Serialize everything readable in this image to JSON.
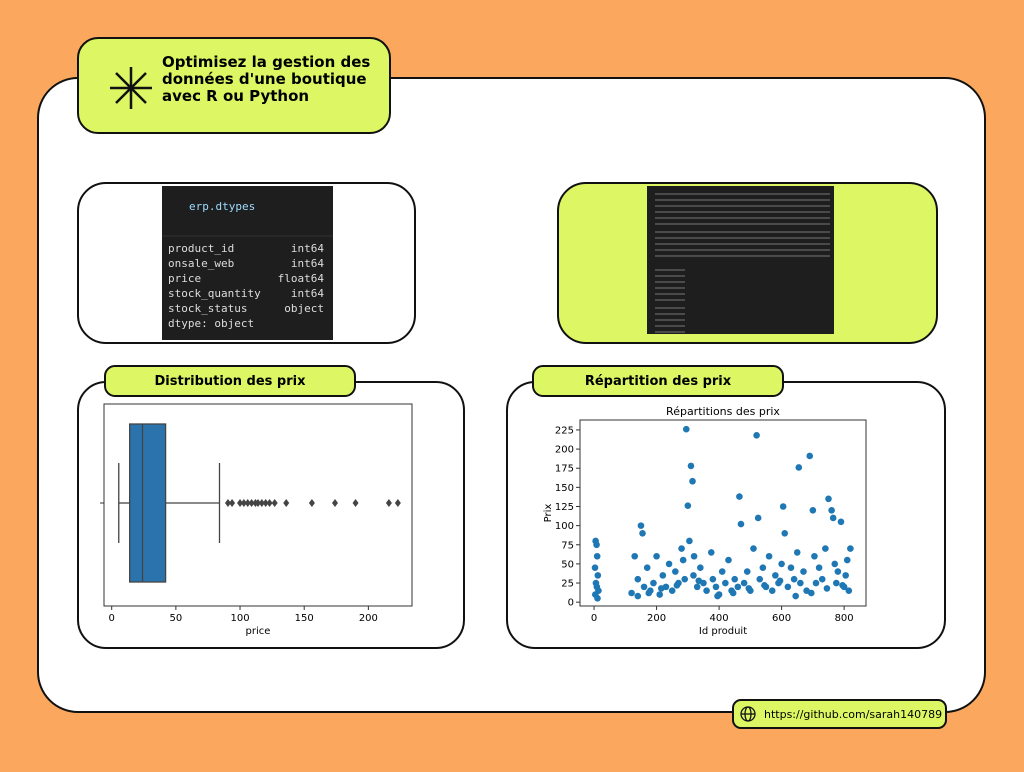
{
  "header": {
    "title_lines": [
      "Optimisez la gestion des",
      "données d'une boutique",
      "avec R ou Python"
    ]
  },
  "code": {
    "command": "erp.dtypes",
    "rows": [
      [
        "product_id",
        "int64"
      ],
      [
        "onsale_web",
        "int64"
      ],
      [
        "price",
        "float64"
      ],
      [
        "stock_quantity",
        "int64"
      ],
      [
        "stock_status",
        "object"
      ]
    ],
    "footer": "dtype: object"
  },
  "panels": [
    "Distribution des prix",
    "Répartition des prix"
  ],
  "footer": {
    "link": "https://github.com/sarah140789"
  },
  "chart_data": [
    {
      "type": "box",
      "xlabel": "price",
      "color": "#2b73ad",
      "whislo": 5.5,
      "q1": 14,
      "med": 24,
      "q3": 42,
      "whishi": 84,
      "outliers": [
        90.6,
        93.8,
        100,
        103,
        106,
        109,
        112,
        114,
        117,
        120,
        123,
        127,
        136,
        156,
        174,
        190,
        216,
        223
      ],
      "xlim": [
        -6,
        234
      ],
      "xticks": [
        0,
        50,
        100,
        150,
        200
      ]
    },
    {
      "type": "scatter",
      "title": "Répartitions des prix",
      "xlabel": "Id produit",
      "ylabel": "Prix",
      "color": "#1f77b4",
      "x": [
        5,
        8,
        10,
        3,
        12,
        6,
        9,
        14,
        4,
        11,
        120,
        130,
        140,
        150,
        155,
        160,
        170,
        180,
        190,
        200,
        210,
        220,
        230,
        240,
        250,
        260,
        270,
        280,
        285,
        290,
        295,
        300,
        305,
        310,
        315,
        318,
        320,
        330,
        340,
        350,
        360,
        375,
        380,
        390,
        400,
        410,
        420,
        430,
        440,
        450,
        460,
        465,
        470,
        480,
        490,
        500,
        510,
        520,
        525,
        530,
        540,
        550,
        560,
        570,
        580,
        590,
        600,
        605,
        610,
        620,
        630,
        640,
        650,
        655,
        660,
        670,
        680,
        690,
        700,
        705,
        710,
        720,
        730,
        740,
        750,
        760,
        765,
        770,
        775,
        780,
        790,
        800,
        805,
        810,
        815,
        820,
        140,
        175,
        215,
        265,
        335,
        395,
        445,
        495,
        545,
        595,
        645,
        695,
        745,
        795
      ],
      "y": [
        80,
        75,
        60,
        45,
        35,
        25,
        20,
        15,
        10,
        5,
        12,
        60,
        30,
        100,
        90,
        20,
        45,
        15,
        25,
        60,
        10,
        35,
        20,
        50,
        15,
        40,
        25,
        70,
        55,
        30,
        226,
        126,
        80,
        178,
        158,
        35,
        60,
        20,
        45,
        25,
        15,
        65,
        30,
        20,
        10,
        40,
        25,
        55,
        15,
        30,
        20,
        138,
        102,
        25,
        40,
        15,
        70,
        218,
        110,
        30,
        45,
        20,
        60,
        15,
        35,
        25,
        50,
        125,
        90,
        20,
        45,
        30,
        65,
        176,
        25,
        40,
        15,
        191,
        120,
        60,
        25,
        45,
        30,
        70,
        135,
        120,
        110,
        50,
        25,
        40,
        105,
        20,
        35,
        55,
        15,
        70,
        8,
        12,
        18,
        22,
        28,
        8,
        12,
        18,
        22,
        28,
        8,
        12,
        18,
        22
      ],
      "xlim": [
        -45,
        870
      ],
      "xticks": [
        0,
        200,
        400,
        600,
        800
      ],
      "ylim": [
        -5,
        238
      ],
      "yticks": [
        0,
        25,
        50,
        75,
        100,
        125,
        150,
        175,
        200,
        225
      ]
    }
  ]
}
